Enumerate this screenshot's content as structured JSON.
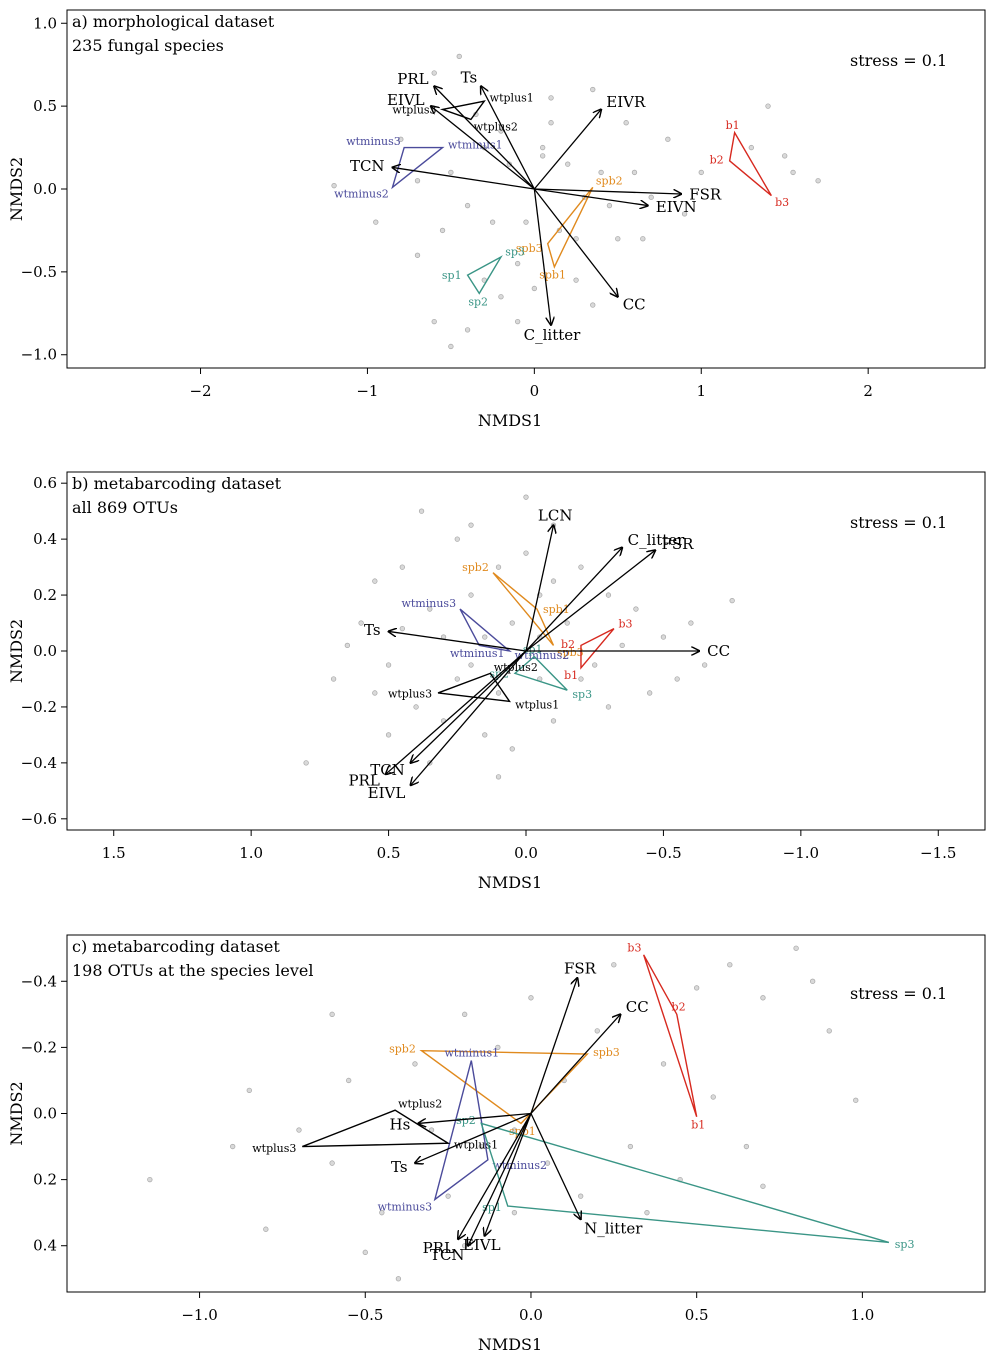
{
  "chart_data": [
    {
      "type": "scatter",
      "panel_label": "a) morphological dataset",
      "panel_sublabel": "235 fungal species",
      "stress_text": "stress =  0.1",
      "xlabel": "NMDS1",
      "ylabel": "NMDS2",
      "xlim": [
        -2.8,
        2.7
      ],
      "ylim": [
        -1.08,
        1.08
      ],
      "x_reversed": false,
      "y_reversed": false,
      "xticks": [
        -2,
        -1,
        0,
        1,
        2
      ],
      "xtick_labels": [
        "−2",
        "−1",
        "0",
        "1",
        "2"
      ],
      "yticks": [
        -1.0,
        -0.5,
        0.0,
        0.5,
        1.0
      ],
      "ytick_labels": [
        "−1.0",
        "−0.5",
        "0.0",
        "0.5",
        "1.0"
      ],
      "points": [
        [
          -0.45,
          0.8
        ],
        [
          -0.6,
          0.7
        ],
        [
          0.35,
          0.6
        ],
        [
          0.55,
          0.4
        ],
        [
          -0.2,
          0.35
        ],
        [
          0.1,
          0.4
        ],
        [
          -0.3,
          0.25
        ],
        [
          0.05,
          0.2
        ],
        [
          0.2,
          0.15
        ],
        [
          -0.5,
          0.1
        ],
        [
          -0.7,
          0.05
        ],
        [
          -1.2,
          0.02
        ],
        [
          0.3,
          -0.05
        ],
        [
          0.45,
          -0.1
        ],
        [
          0.7,
          -0.05
        ],
        [
          0.9,
          -0.15
        ],
        [
          -0.4,
          -0.1
        ],
        [
          -0.25,
          -0.2
        ],
        [
          -0.55,
          -0.25
        ],
        [
          0.15,
          -0.25
        ],
        [
          0.5,
          -0.3
        ],
        [
          0.65,
          -0.3
        ],
        [
          -0.1,
          -0.45
        ],
        [
          0.25,
          -0.55
        ],
        [
          -0.3,
          -0.55
        ],
        [
          -0.2,
          -0.65
        ],
        [
          0.0,
          -0.6
        ],
        [
          -0.6,
          -0.8
        ],
        [
          -0.4,
          -0.85
        ],
        [
          -0.5,
          -0.95
        ],
        [
          -0.1,
          -0.8
        ],
        [
          1.4,
          0.5
        ],
        [
          1.5,
          0.2
        ],
        [
          1.7,
          0.05
        ],
        [
          1.55,
          0.1
        ],
        [
          1.3,
          0.25
        ],
        [
          1.0,
          0.1
        ],
        [
          0.8,
          0.3
        ],
        [
          -0.8,
          0.3
        ],
        [
          -0.95,
          -0.2
        ],
        [
          0.05,
          0.25
        ],
        [
          -0.05,
          -0.2
        ],
        [
          0.35,
          -0.7
        ],
        [
          0.1,
          0.55
        ],
        [
          -0.15,
          0.15
        ],
        [
          0.4,
          0.1
        ],
        [
          -0.35,
          0.45
        ],
        [
          0.6,
          0.1
        ],
        [
          -0.7,
          -0.4
        ],
        [
          0.25,
          -0.3
        ]
      ],
      "arrows": [
        {
          "label": "PRL",
          "x": -0.6,
          "y": 0.62
        },
        {
          "label": "Ts",
          "x": -0.32,
          "y": 0.62
        },
        {
          "label": "EIVL",
          "x": -0.62,
          "y": 0.5
        },
        {
          "label": "EIVR",
          "x": 0.4,
          "y": 0.48
        },
        {
          "label": "TCN",
          "x": -0.85,
          "y": 0.13
        },
        {
          "label": "FSR",
          "x": 0.88,
          "y": -0.03
        },
        {
          "label": "EIVN",
          "x": 0.68,
          "y": -0.1
        },
        {
          "label": "CC",
          "x": 0.5,
          "y": -0.65
        },
        {
          "label": "C_litter",
          "x": 0.1,
          "y": -0.82
        }
      ],
      "groups": [
        {
          "name": "wtplus",
          "color": "#000000",
          "vertices": [
            {
              "label": "wtplus3",
              "x": -0.55,
              "y": 0.48
            },
            {
              "label": "wtplus1",
              "x": -0.3,
              "y": 0.53
            },
            {
              "label": "wtplus2",
              "x": -0.38,
              "y": 0.42
            }
          ]
        },
        {
          "name": "wtminus",
          "color": "#4b4b9b",
          "vertices": [
            {
              "label": "wtminus3",
              "x": -0.78,
              "y": 0.25
            },
            {
              "label": "wtminus1",
              "x": -0.55,
              "y": 0.25
            },
            {
              "label": "wtminus2",
              "x": -0.85,
              "y": 0.01
            }
          ]
        },
        {
          "name": "b",
          "color": "#d7291f",
          "vertices": [
            {
              "label": "b1",
              "x": 1.2,
              "y": 0.34
            },
            {
              "label": "b2",
              "x": 1.17,
              "y": 0.17
            },
            {
              "label": "b3",
              "x": 1.42,
              "y": -0.04
            }
          ]
        },
        {
          "name": "spb",
          "color": "#e08a1e",
          "vertices": [
            {
              "label": "spb2",
              "x": 0.35,
              "y": 0.01
            },
            {
              "label": "spb3",
              "x": 0.08,
              "y": -0.33
            },
            {
              "label": "spb1",
              "x": 0.12,
              "y": -0.47
            }
          ]
        },
        {
          "name": "sp",
          "color": "#3a9586",
          "vertices": [
            {
              "label": "sp3",
              "x": -0.2,
              "y": -0.41
            },
            {
              "label": "sp1",
              "x": -0.4,
              "y": -0.52
            },
            {
              "label": "sp2",
              "x": -0.33,
              "y": -0.63
            }
          ]
        }
      ]
    },
    {
      "type": "scatter",
      "panel_label": "b) metabarcoding dataset",
      "panel_sublabel": "all 869 OTUs",
      "stress_text": "stress =  0.1",
      "xlabel": "NMDS1",
      "ylabel": "NMDS2",
      "xlim": [
        1.67,
        -1.67
      ],
      "ylim": [
        -0.64,
        0.64
      ],
      "x_reversed": true,
      "y_reversed": false,
      "xticks": [
        1.5,
        1.0,
        0.5,
        0.0,
        -0.5,
        -1.0,
        -1.5
      ],
      "xtick_labels": [
        "1.5",
        "1.0",
        "0.5",
        "0.0",
        "−0.5",
        "−1.0",
        "−1.5"
      ],
      "yticks": [
        -0.6,
        -0.4,
        -0.2,
        0.0,
        0.2,
        0.4,
        0.6
      ],
      "ytick_labels": [
        "−0.6",
        "−0.4",
        "−0.2",
        "0.0",
        "0.2",
        "0.4",
        "0.6"
      ],
      "points": [
        [
          0.38,
          0.5
        ],
        [
          0.25,
          0.4
        ],
        [
          0.45,
          0.3
        ],
        [
          0.55,
          0.25
        ],
        [
          0.6,
          0.1
        ],
        [
          0.7,
          -0.1
        ],
        [
          0.5,
          -0.05
        ],
        [
          0.35,
          0.15
        ],
        [
          0.2,
          0.2
        ],
        [
          0.1,
          0.3
        ],
        [
          0.0,
          0.35
        ],
        [
          -0.1,
          0.25
        ],
        [
          -0.2,
          0.3
        ],
        [
          -0.3,
          0.2
        ],
        [
          -0.4,
          0.15
        ],
        [
          -0.5,
          0.05
        ],
        [
          -0.6,
          0.1
        ],
        [
          -0.75,
          0.18
        ],
        [
          -0.65,
          -0.05
        ],
        [
          -0.45,
          -0.15
        ],
        [
          -0.3,
          -0.2
        ],
        [
          -0.2,
          -0.1
        ],
        [
          -0.1,
          -0.25
        ],
        [
          0.05,
          -0.35
        ],
        [
          0.15,
          -0.3
        ],
        [
          0.3,
          -0.25
        ],
        [
          0.4,
          -0.2
        ],
        [
          0.5,
          -0.3
        ],
        [
          0.25,
          -0.1
        ],
        [
          0.15,
          0.05
        ],
        [
          0.05,
          0.1
        ],
        [
          -0.05,
          0.05
        ],
        [
          -0.15,
          0.1
        ],
        [
          -0.25,
          -0.05
        ],
        [
          -0.35,
          0.02
        ],
        [
          0.45,
          0.08
        ],
        [
          0.3,
          0.05
        ],
        [
          0.2,
          -0.05
        ],
        [
          0.1,
          -0.15
        ],
        [
          -0.05,
          -0.1
        ],
        [
          0.55,
          -0.15
        ],
        [
          0.65,
          0.02
        ],
        [
          -0.55,
          -0.1
        ],
        [
          0.0,
          0.55
        ],
        [
          0.2,
          0.45
        ],
        [
          0.1,
          -0.45
        ],
        [
          -0.1,
          0.45
        ],
        [
          0.35,
          -0.4
        ],
        [
          0.8,
          -0.4
        ],
        [
          -0.05,
          0.2
        ]
      ],
      "arrows": [
        {
          "label": "LCN",
          "x": -0.1,
          "y": 0.45
        },
        {
          "label": "C_litter",
          "x": -0.35,
          "y": 0.37
        },
        {
          "label": "FSR",
          "x": -0.47,
          "y": 0.36
        },
        {
          "label": "Ts",
          "x": 0.5,
          "y": 0.07
        },
        {
          "label": "CC",
          "x": -0.63,
          "y": 0.0
        },
        {
          "label": "PRL",
          "x": 0.51,
          "y": -0.44
        },
        {
          "label": "TCN",
          "x": 0.42,
          "y": -0.4
        },
        {
          "label": "EIVL",
          "x": 0.42,
          "y": -0.48
        }
      ],
      "groups": [
        {
          "name": "spb",
          "color": "#e08a1e",
          "vertices": [
            {
              "label": "spb2",
              "x": 0.12,
              "y": 0.28
            },
            {
              "label": "spb1",
              "x": -0.04,
              "y": 0.15
            },
            {
              "label": "spb3",
              "x": -0.1,
              "y": 0.02
            }
          ]
        },
        {
          "name": "wtminus",
          "color": "#4b4b9b",
          "vertices": [
            {
              "label": "wtminus3",
              "x": 0.24,
              "y": 0.15
            },
            {
              "label": "wtminus1",
              "x": 0.17,
              "y": 0.02
            },
            {
              "label": "wtminus2",
              "x": 0.06,
              "y": 0.0
            }
          ]
        },
        {
          "name": "b",
          "color": "#d7291f",
          "vertices": [
            {
              "label": "b3",
              "x": -0.32,
              "y": 0.08
            },
            {
              "label": "b2",
              "x": -0.2,
              "y": 0.02
            },
            {
              "label": "b1",
              "x": -0.2,
              "y": -0.06
            }
          ]
        },
        {
          "name": "sp",
          "color": "#3a9586",
          "vertices": [
            {
              "label": "sp1",
              "x": -0.03,
              "y": -0.02
            },
            {
              "label": "sp2",
              "x": 0.04,
              "y": -0.08
            },
            {
              "label": "sp3",
              "x": -0.15,
              "y": -0.14
            }
          ]
        },
        {
          "name": "wtplus",
          "color": "#000000",
          "vertices": [
            {
              "label": "wtplus2",
              "x": 0.13,
              "y": -0.08
            },
            {
              "label": "wtplus3",
              "x": 0.32,
              "y": -0.15
            },
            {
              "label": "wtplus1",
              "x": 0.06,
              "y": -0.18
            }
          ]
        }
      ]
    },
    {
      "type": "scatter",
      "panel_label": "c) metabarcoding dataset",
      "panel_sublabel": "198 OTUs at the species level",
      "stress_text": "stress =  0.1",
      "xlabel": "NMDS1",
      "ylabel": "NMDS2",
      "xlim": [
        -1.4,
        1.37
      ],
      "ylim": [
        0.54,
        -0.54
      ],
      "x_reversed": false,
      "y_reversed": true,
      "xticks": [
        -1.0,
        -0.5,
        0.0,
        0.5,
        1.0
      ],
      "xtick_labels": [
        "−1.0",
        "−0.5",
        "0.0",
        "0.5",
        "1.0"
      ],
      "yticks": [
        -0.4,
        -0.2,
        0.0,
        0.2,
        0.4
      ],
      "ytick_labels": [
        "−0.4",
        "−0.2",
        "0.0",
        "0.2",
        "0.4"
      ],
      "points": [
        [
          -1.15,
          0.2
        ],
        [
          -0.9,
          0.1
        ],
        [
          -0.85,
          -0.07
        ],
        [
          -0.8,
          0.35
        ],
        [
          -0.7,
          0.05
        ],
        [
          -0.6,
          0.15
        ],
        [
          -0.55,
          -0.1
        ],
        [
          -0.5,
          0.42
        ],
        [
          -0.45,
          0.3
        ],
        [
          -0.35,
          -0.15
        ],
        [
          -0.3,
          0.05
        ],
        [
          -0.25,
          0.25
        ],
        [
          -0.2,
          -0.3
        ],
        [
          -0.15,
          0.1
        ],
        [
          -0.1,
          -0.2
        ],
        [
          -0.05,
          0.05
        ],
        [
          0.0,
          -0.35
        ],
        [
          0.05,
          0.15
        ],
        [
          0.1,
          -0.1
        ],
        [
          0.15,
          0.25
        ],
        [
          0.2,
          -0.25
        ],
        [
          0.3,
          0.1
        ],
        [
          0.35,
          0.3
        ],
        [
          0.4,
          -0.15
        ],
        [
          0.45,
          0.2
        ],
        [
          0.55,
          -0.05
        ],
        [
          0.65,
          0.1
        ],
        [
          0.7,
          -0.35
        ],
        [
          0.8,
          -0.5
        ],
        [
          0.85,
          -0.4
        ],
        [
          0.9,
          -0.25
        ],
        [
          0.98,
          -0.04
        ],
        [
          0.7,
          0.22
        ],
        [
          0.6,
          -0.45
        ],
        [
          -0.4,
          0.5
        ],
        [
          -0.6,
          -0.3
        ],
        [
          -0.2,
          0.4
        ],
        [
          0.25,
          -0.45
        ],
        [
          0.5,
          -0.38
        ],
        [
          -0.05,
          0.3
        ]
      ],
      "arrows": [
        {
          "label": "FSR",
          "x": 0.14,
          "y": -0.41
        },
        {
          "label": "CC",
          "x": 0.27,
          "y": -0.3
        },
        {
          "label": "Hs",
          "x": -0.34,
          "y": 0.03
        },
        {
          "label": "Ts",
          "x": -0.35,
          "y": 0.15
        },
        {
          "label": "N_litter",
          "x": 0.15,
          "y": 0.32
        },
        {
          "label": "PRL",
          "x": -0.22,
          "y": 0.38
        },
        {
          "label": "TCN",
          "x": -0.19,
          "y": 0.4
        },
        {
          "label": "EIVL",
          "x": -0.14,
          "y": 0.37
        }
      ],
      "groups": [
        {
          "name": "b",
          "color": "#d7291f",
          "vertices": [
            {
              "label": "b3",
              "x": 0.34,
              "y": -0.48
            },
            {
              "label": "b2",
              "x": 0.44,
              "y": -0.3
            },
            {
              "label": "b1",
              "x": 0.5,
              "y": 0.01
            }
          ]
        },
        {
          "name": "spb",
          "color": "#e08a1e",
          "vertices": [
            {
              "label": "spb2",
              "x": -0.33,
              "y": -0.19
            },
            {
              "label": "spb3",
              "x": 0.17,
              "y": -0.18
            },
            {
              "label": "spb1",
              "x": -0.03,
              "y": 0.03
            }
          ]
        },
        {
          "name": "wtminus",
          "color": "#4b4b9b",
          "vertices": [
            {
              "label": "wtminus1",
              "x": -0.18,
              "y": -0.16
            },
            {
              "label": "wtminus2",
              "x": -0.13,
              "y": 0.14
            },
            {
              "label": "wtminus3",
              "x": -0.29,
              "y": 0.26
            }
          ]
        },
        {
          "name": "wtplus",
          "color": "#000000",
          "vertices": [
            {
              "label": "wtplus2",
              "x": -0.41,
              "y": -0.01
            },
            {
              "label": "wtplus3",
              "x": -0.69,
              "y": 0.1
            },
            {
              "label": "wtplus1",
              "x": -0.25,
              "y": 0.09
            }
          ]
        },
        {
          "name": "sp",
          "color": "#3a9586",
          "vertices": [
            {
              "label": "sp2",
              "x": -0.15,
              "y": 0.03
            },
            {
              "label": "sp1",
              "x": -0.07,
              "y": 0.28
            },
            {
              "label": "sp3",
              "x": 1.08,
              "y": 0.39
            }
          ]
        }
      ]
    }
  ]
}
